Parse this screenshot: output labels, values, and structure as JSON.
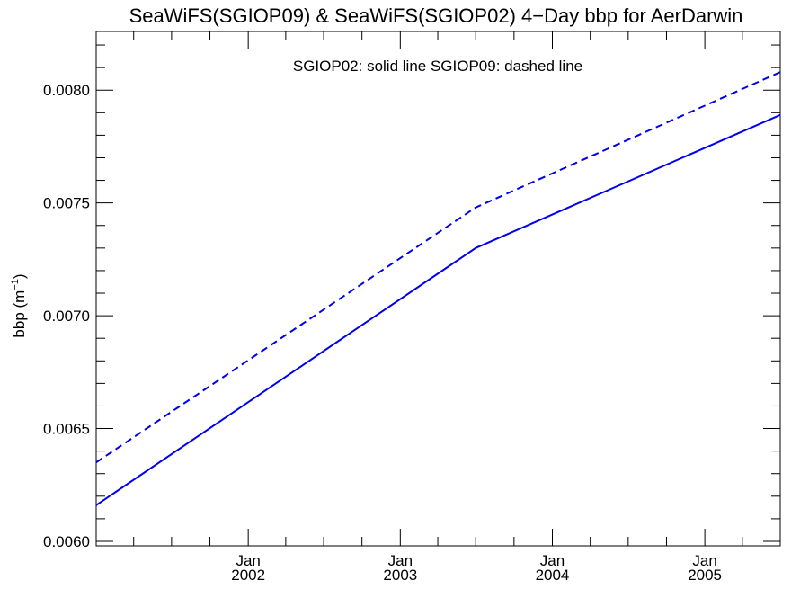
{
  "chart_data": {
    "type": "line",
    "title": "SeaWiFS(SGIOP09) & SeaWiFS(SGIOP02) 4−Day bbp for AerDarwin",
    "ylabel_main": "bbp (m",
    "ylabel_sup": "−1",
    "ylabel_end": ")",
    "annotation": "SGIOP02: solid line   SGIOP09: dashed line",
    "colors": {
      "series": "#0000ee",
      "axis": "#000000"
    },
    "xlim": [
      "2001-01-01",
      "2005-07-01"
    ],
    "ylim": [
      0.00598,
      0.00826
    ],
    "grid": false,
    "xticks": [
      {
        "date": "2002-01-01",
        "month": "Jan",
        "year": "2002"
      },
      {
        "date": "2003-01-01",
        "month": "Jan",
        "year": "2003"
      },
      {
        "date": "2004-01-01",
        "month": "Jan",
        "year": "2004"
      },
      {
        "date": "2005-01-01",
        "month": "Jan",
        "year": "2005"
      }
    ],
    "yticks": [
      {
        "value": 0.006,
        "label": "0.0060"
      },
      {
        "value": 0.0065,
        "label": "0.0065"
      },
      {
        "value": 0.007,
        "label": "0.0070"
      },
      {
        "value": 0.0075,
        "label": "0.0075"
      },
      {
        "value": 0.008,
        "label": "0.0080"
      }
    ],
    "series": [
      {
        "style": "solid",
        "points": [
          {
            "x": "2001-01-01",
            "y": 0.00616
          },
          {
            "x": "2003-07-01",
            "y": 0.0073
          },
          {
            "x": "2005-07-01",
            "y": 0.00789
          }
        ]
      },
      {
        "style": "dashed",
        "points": [
          {
            "x": "2001-01-01",
            "y": 0.00635
          },
          {
            "x": "2003-07-01",
            "y": 0.00748
          },
          {
            "x": "2005-07-01",
            "y": 0.00808
          }
        ]
      }
    ]
  }
}
